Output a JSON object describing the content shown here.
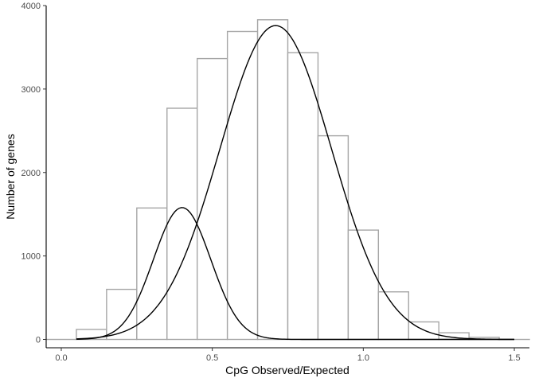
{
  "chart_data": {
    "type": "bar",
    "subtype": "histogram with two fitted density curves",
    "xlabel": "CpG Observed/Expected",
    "ylabel": "Number of genes",
    "xlim": [
      -0.05,
      1.55
    ],
    "ylim": [
      -100,
      4000
    ],
    "x_ticks": [
      0.0,
      0.5,
      1.0,
      1.5
    ],
    "x_tick_labels": [
      "0.0",
      "0.5",
      "1.0",
      "1.5"
    ],
    "y_ticks": [
      0,
      1000,
      2000,
      3000,
      4000
    ],
    "y_tick_labels": [
      "0",
      "1000",
      "2000",
      "3000",
      "4000"
    ],
    "grid": false,
    "legend": "none",
    "bin_width": 0.1,
    "bins": [
      {
        "start": -0.05,
        "end": 0.05,
        "count": 0
      },
      {
        "start": 0.05,
        "end": 0.15,
        "count": 120
      },
      {
        "start": 0.15,
        "end": 0.25,
        "count": 600
      },
      {
        "start": 0.25,
        "end": 0.35,
        "count": 1575
      },
      {
        "start": 0.35,
        "end": 0.45,
        "count": 2770
      },
      {
        "start": 0.45,
        "end": 0.55,
        "count": 3365
      },
      {
        "start": 0.55,
        "end": 0.65,
        "count": 3690
      },
      {
        "start": 0.65,
        "end": 0.75,
        "count": 3830
      },
      {
        "start": 0.75,
        "end": 0.85,
        "count": 3435
      },
      {
        "start": 0.85,
        "end": 0.95,
        "count": 2440
      },
      {
        "start": 0.95,
        "end": 1.05,
        "count": 1310
      },
      {
        "start": 1.05,
        "end": 1.15,
        "count": 570
      },
      {
        "start": 1.15,
        "end": 1.25,
        "count": 210
      },
      {
        "start": 1.25,
        "end": 1.35,
        "count": 80
      },
      {
        "start": 1.35,
        "end": 1.45,
        "count": 25
      },
      {
        "start": 1.45,
        "end": 1.55,
        "count": 0
      }
    ],
    "curves": [
      {
        "peak_x": 0.4,
        "peak_y": 1580,
        "sd": 0.095,
        "x_range": [
          0.05,
          1.5
        ]
      },
      {
        "peak_x": 0.71,
        "peak_y": 3760,
        "sd": 0.185,
        "x_range": [
          0.05,
          1.5
        ]
      }
    ],
    "colors": {
      "bar_outline": "#a6a6a6",
      "bar_fill": "#ffffff",
      "curve": "#000000",
      "axis": "#000000",
      "tick_text": "#4d4d4d"
    }
  }
}
